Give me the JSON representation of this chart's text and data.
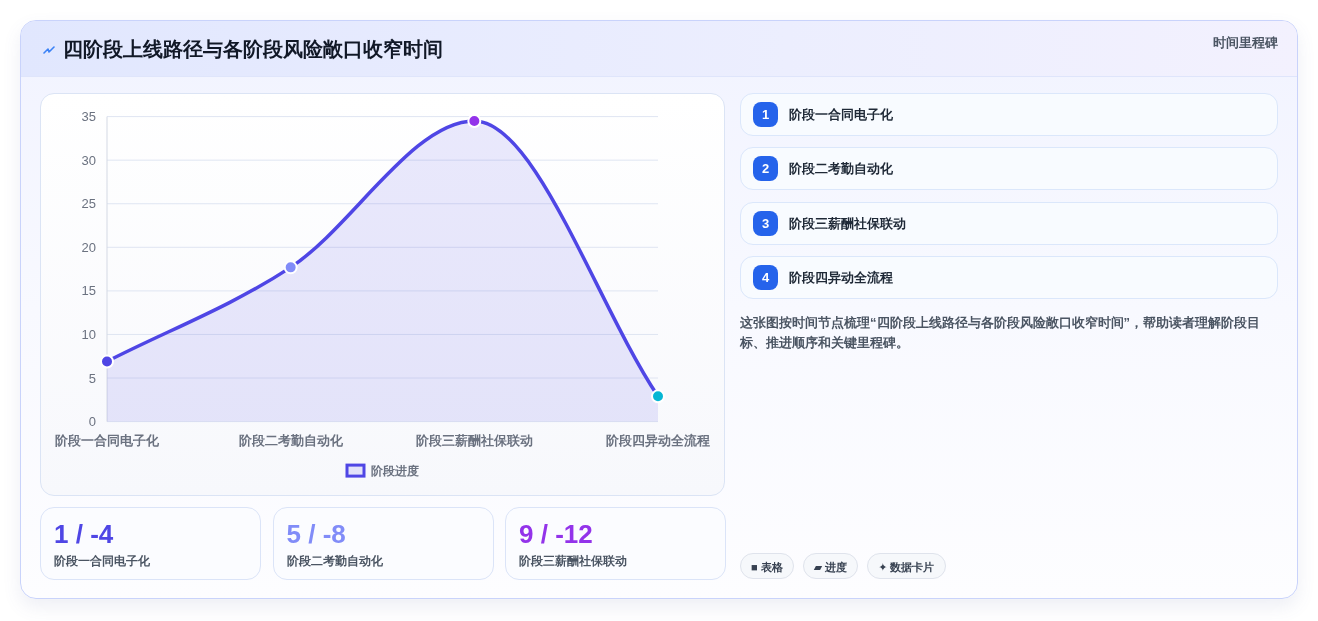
{
  "chart_data": [
    {
      "type": "area",
      "title": "四阶段上线路径与各阶段风险敞口收窄时间",
      "categories": [
        "阶段一合同电子化",
        "阶段二考勤自动化",
        "阶段三薪酬社保联动",
        "阶段四异动全流程"
      ],
      "series": [
        {
          "name": "阶段进度",
          "color": "#4f46e5",
          "colors": [
            "#4f46e5",
            "#818cf8",
            "#9333ea",
            "#06b6d4"
          ],
          "values": [
            6.9,
            17.7,
            34.5,
            2.9
          ]
        }
      ],
      "ylim": [
        0,
        35
      ],
      "yticks": [
        0,
        5,
        10,
        15,
        20,
        25,
        30,
        35
      ],
      "grid": "y",
      "legend": "bottom",
      "marker": "circle"
    },
    {
      "type": "other",
      "title": "时间里程碑",
      "annotations": [
        "1 阶段一合同电子化",
        "2 阶段二考勤自动化",
        "3 阶段三薪酬社保联动",
        "4 阶段四异动全流程",
        "这张图按时间节点梳理“四阶段上线路径与各阶段风险敞口收窄时间”，帮助读者理解阶段目标、推进顺序和关键里程碑。"
      ]
    },
    {
      "type": "other",
      "annotations": [
        "1 / -4",
        "阶段一合同电子化",
        "5 / -8",
        "阶段二考勤自动化",
        "9 / -12",
        "阶段三薪酬社保联动"
      ],
      "colors": [
        "#4f46e5",
        "#818cf8",
        "#9333ea"
      ]
    },
    {
      "type": "other",
      "annotations": [
        "■ 表格",
        "▰ 进度",
        "✦ 数据卡片"
      ]
    }
  ]
}
